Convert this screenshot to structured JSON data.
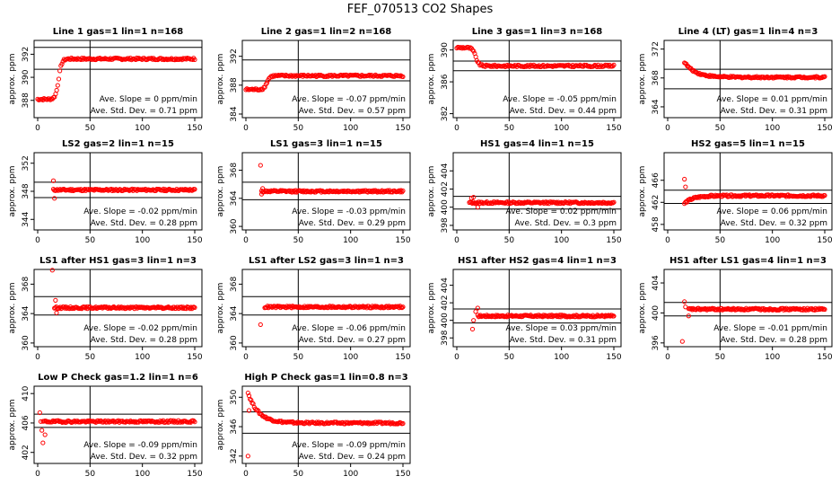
{
  "page_title": "FEF_070513  CO2 Shapes",
  "stats_labels": {
    "slope": "Ave. Slope =",
    "slope_unit": "ppm/min",
    "sd": "Ave. Std. Dev. =",
    "sd_unit": "ppm"
  },
  "colors": {
    "points": "#ff0000",
    "axes": "#000000",
    "text": "#000000"
  },
  "chart_data": [
    {
      "type": "scatter",
      "title": "Line 1 gas=1 lin=1 n=168",
      "ylabel": "approx. ppm",
      "xlim": [
        0,
        150
      ],
      "ylim": [
        386.5,
        393.2
      ],
      "xticks": [
        0,
        50,
        100,
        150
      ],
      "yticks": [
        388,
        390,
        392
      ],
      "hlines": [
        390.7,
        392.6
      ],
      "vline": 50,
      "slope": "0",
      "sd": "0.71",
      "shape": "step",
      "shape_params": {
        "start_x": 0,
        "end_x": 150,
        "y_low": 388.1,
        "y_high": 391.6,
        "x_step": 20
      }
    },
    {
      "type": "scatter",
      "title": "Line 2 gas=1 lin=2 n=168",
      "ylabel": "approx. ppm",
      "xlim": [
        0,
        150
      ],
      "ylim": [
        383.5,
        394.2
      ],
      "xticks": [
        0,
        50,
        100,
        150
      ],
      "yticks": [
        384,
        388,
        392
      ],
      "hlines": [
        388.6,
        391.5
      ],
      "vline": 50,
      "slope": "-0.07",
      "sd": "0.57",
      "shape": "step",
      "shape_params": {
        "start_x": 0,
        "end_x": 150,
        "y_low": 387.4,
        "y_high": 389.3,
        "x_step": 20
      }
    },
    {
      "type": "scatter",
      "title": "Line 3 gas=1 lin=3 n=168",
      "ylabel": "approx. ppm",
      "xlim": [
        0,
        150
      ],
      "ylim": [
        381.5,
        391.2
      ],
      "xticks": [
        0,
        50,
        100,
        150
      ],
      "yticks": [
        382,
        386,
        390
      ],
      "hlines": [
        387.4,
        388.6
      ],
      "vline": 50,
      "slope": "-0.05",
      "sd": "0.44",
      "shape": "peak_drop",
      "shape_params": {
        "start_x": 0,
        "end_x": 150,
        "y_plateau": 388.0,
        "y_peak": 390.3,
        "x_drop": 18
      }
    },
    {
      "type": "scatter",
      "title": "Line 4 (LT) gas=1 lin=4 n=3",
      "ylabel": "approx. ppm",
      "xlim": [
        0,
        150
      ],
      "ylim": [
        382.5,
        373.2
      ],
      "xticks": [
        0,
        50,
        100,
        150
      ],
      "yticks": [
        364,
        368,
        372
      ],
      "hlines": [
        366.5,
        369.2
      ],
      "vline": 50,
      "slope": "0.01",
      "sd": "0.31",
      "shape": "decay",
      "shape_params": {
        "start_x": 16,
        "end_x": 150,
        "y_plateau": 368.1,
        "y_peak": 370.2
      }
    },
    {
      "type": "scatter",
      "title": "LS2 gas=2 lin=1 n=15",
      "ylabel": "approx. ppm",
      "xlim": [
        0,
        150
      ],
      "ylim": [
        342.5,
        353.5
      ],
      "xticks": [
        0,
        50,
        100,
        150
      ],
      "yticks": [
        344,
        348,
        352
      ],
      "hlines": [
        347.1,
        349.3
      ],
      "vline": 50,
      "slope": "-0.02",
      "sd": "0.28",
      "shape": "flat",
      "shape_params": {
        "start_x": 15,
        "end_x": 150,
        "y_plateau": 348.2,
        "outliers": [
          [
            15,
            349.5
          ],
          [
            16,
            347.0
          ]
        ]
      }
    },
    {
      "type": "scatter",
      "title": "LS1 gas=3 lin=1 n=15",
      "ylabel": "approx. ppm",
      "xlim": [
        0,
        150
      ],
      "ylim": [
        359.5,
        370.5
      ],
      "xticks": [
        0,
        50,
        100,
        150
      ],
      "yticks": [
        360,
        364,
        368
      ],
      "hlines": [
        363.8,
        366.3
      ],
      "vline": 50,
      "slope": "-0.03",
      "sd": "0.29",
      "shape": "flat",
      "shape_params": {
        "start_x": 15,
        "end_x": 150,
        "y_plateau": 365.0,
        "outliers": [
          [
            14,
            368.7
          ],
          [
            15,
            364.6
          ],
          [
            16,
            365.4
          ]
        ]
      }
    },
    {
      "type": "scatter",
      "title": "HS1 gas=4 lin=1 n=15",
      "ylabel": "approx. ppm",
      "xlim": [
        0,
        150
      ],
      "ylim": [
        397.5,
        406.0
      ],
      "xticks": [
        0,
        50,
        100,
        150
      ],
      "yticks": [
        398,
        400,
        402,
        404
      ],
      "hlines": [
        399.8,
        401.2
      ],
      "vline": 50,
      "slope": "0.02",
      "sd": "0.3",
      "shape": "flat",
      "shape_params": {
        "start_x": 12,
        "end_x": 150,
        "y_plateau": 400.5,
        "outliers": [
          [
            14,
            401.0
          ],
          [
            16,
            401.1
          ],
          [
            20,
            400.0
          ]
        ]
      }
    },
    {
      "type": "scatter",
      "title": "HS2 gas=5 lin=1 n=15",
      "ylabel": "approx. ppm",
      "xlim": [
        0,
        150
      ],
      "ylim": [
        457.0,
        471.0
      ],
      "xticks": [
        0,
        50,
        100,
        150
      ],
      "yticks": [
        458,
        462,
        466
      ],
      "hlines": [
        461.8,
        464.2
      ],
      "vline": 50,
      "slope": "0.06",
      "sd": "0.32",
      "shape": "rise",
      "shape_params": {
        "start_x": 16,
        "end_x": 150,
        "y_plateau": 463.2,
        "y_start": 461.8,
        "outliers": [
          [
            16,
            466.2
          ],
          [
            17,
            464.8
          ]
        ]
      }
    },
    {
      "type": "scatter",
      "title": "LS1 after HS1 gas=3 lin=1 n=3",
      "ylabel": "approx. ppm",
      "xlim": [
        0,
        150
      ],
      "ylim": [
        359.5,
        370.0
      ],
      "xticks": [
        0,
        50,
        100,
        150
      ],
      "yticks": [
        360,
        364,
        368
      ],
      "hlines": [
        363.8,
        366.3
      ],
      "vline": 50,
      "slope": "-0.02",
      "sd": "0.28",
      "shape": "flat",
      "shape_params": {
        "start_x": 16,
        "end_x": 150,
        "y_plateau": 364.8,
        "outliers": [
          [
            14,
            369.9
          ],
          [
            17,
            365.8
          ],
          [
            18,
            364.1
          ]
        ]
      }
    },
    {
      "type": "scatter",
      "title": "LS1 after LS2 gas=3 lin=1 n=3",
      "ylabel": "approx. ppm",
      "xlim": [
        0,
        150
      ],
      "ylim": [
        359.5,
        370.0
      ],
      "xticks": [
        0,
        50,
        100,
        150
      ],
      "yticks": [
        360,
        364,
        368
      ],
      "hlines": [
        363.8,
        366.3
      ],
      "vline": 50,
      "slope": "-0.06",
      "sd": "0.27",
      "shape": "flat",
      "shape_params": {
        "start_x": 18,
        "end_x": 150,
        "y_plateau": 364.9,
        "outliers": [
          [
            14,
            362.5
          ]
        ]
      }
    },
    {
      "type": "scatter",
      "title": "HS1 after HS2 gas=4 lin=1 n=3",
      "ylabel": "approx. ppm",
      "xlim": [
        0,
        150
      ],
      "ylim": [
        397.0,
        405.8
      ],
      "xticks": [
        0,
        50,
        100,
        150
      ],
      "yticks": [
        398,
        400,
        402,
        404
      ],
      "hlines": [
        399.7,
        401.3
      ],
      "vline": 50,
      "slope": "0.03",
      "sd": "0.31",
      "shape": "flat",
      "shape_params": {
        "start_x": 20,
        "end_x": 150,
        "y_plateau": 400.5,
        "outliers": [
          [
            15,
            399.0
          ],
          [
            16,
            400.0
          ],
          [
            18,
            401.0
          ],
          [
            20,
            401.4
          ]
        ]
      }
    },
    {
      "type": "scatter",
      "title": "HS1 after LS1 gas=4 lin=1 n=3",
      "ylabel": "approx. ppm",
      "xlim": [
        0,
        150
      ],
      "ylim": [
        395.5,
        405.8
      ],
      "xticks": [
        0,
        50,
        100,
        150
      ],
      "yticks": [
        396,
        400,
        404
      ],
      "hlines": [
        399.6,
        401.4
      ],
      "vline": 50,
      "slope": "-0.01",
      "sd": "0.28",
      "shape": "flat",
      "shape_params": {
        "start_x": 20,
        "end_x": 150,
        "y_plateau": 400.5,
        "outliers": [
          [
            14,
            396.2
          ],
          [
            16,
            401.5
          ],
          [
            17,
            400.8
          ],
          [
            20,
            399.6
          ]
        ]
      }
    },
    {
      "type": "scatter",
      "title": "Low P Check gas=1.2 lin=1 n=6",
      "ylabel": "approx. ppm",
      "xlim": [
        0,
        150
      ],
      "ylim": [
        400.5,
        411.0
      ],
      "xticks": [
        0,
        50,
        100,
        150
      ],
      "yticks": [
        402,
        406,
        410
      ],
      "hlines": [
        405.4,
        407.2
      ],
      "vline": 50,
      "slope": "-0.09",
      "sd": "0.32",
      "shape": "flat",
      "shape_params": {
        "start_x": 5,
        "end_x": 150,
        "y_plateau": 406.2,
        "outliers": [
          [
            2,
            407.4
          ],
          [
            3,
            406.2
          ],
          [
            4,
            405.0
          ],
          [
            5,
            403.3
          ],
          [
            7,
            404.4
          ]
        ]
      }
    },
    {
      "type": "scatter",
      "title": "High P Check gas=1 lin=0.8 n=3",
      "ylabel": "approx. ppm",
      "xlim": [
        0,
        150
      ],
      "ylim": [
        341.0,
        351.5
      ],
      "xticks": [
        0,
        50,
        100,
        150
      ],
      "yticks": [
        342,
        346,
        350
      ],
      "hlines": [
        345.1,
        348.0
      ],
      "vline": 50,
      "slope": "-0.09",
      "sd": "0.24",
      "shape": "decay",
      "shape_params": {
        "start_x": 2,
        "end_x": 150,
        "y_plateau": 346.5,
        "y_peak": 350.6,
        "outliers": [
          [
            2,
            342.0
          ],
          [
            3,
            348.2
          ]
        ]
      }
    }
  ]
}
